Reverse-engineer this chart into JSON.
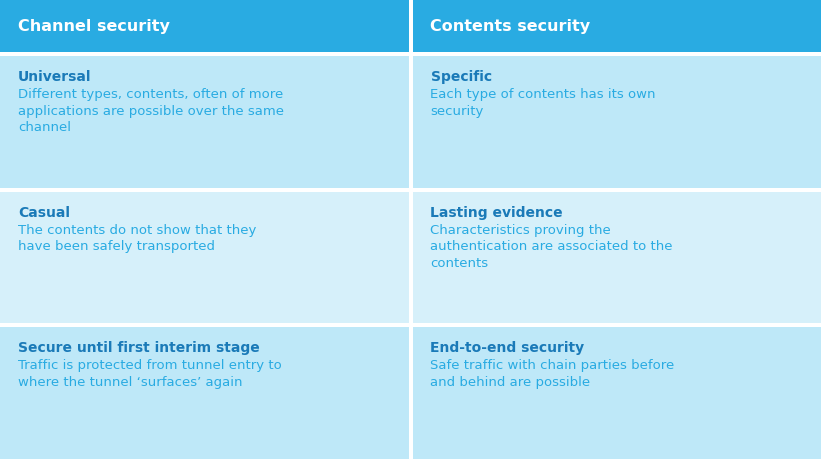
{
  "header_bg": "#29ABE2",
  "header_text_color": "#FFFFFF",
  "row_bgs": [
    "#BEE8F8",
    "#D6F0FA",
    "#BEE8F8"
  ],
  "bold_text_color": "#1A7AB8",
  "normal_text_color": "#29ABE2",
  "divider_color": "#FFFFFF",
  "headers": [
    "Channel security",
    "Contents security"
  ],
  "rows": [
    {
      "left_title": "Universal",
      "left_body": "Different types, contents, often of more\napplications are possible over the same\nchannel",
      "right_title": "Specific",
      "right_body": "Each type of contents has its own\nsecurity"
    },
    {
      "left_title": "Casual",
      "left_body": "The contents do not show that they\nhave been safely transported",
      "right_title": "Lasting evidence",
      "right_body": "Characteristics proving the\nauthentication are associated to the\ncontents"
    },
    {
      "left_title": "Secure until first interim stage",
      "left_body": "Traffic is protected from tunnel entry to\nwhere the tunnel ‘surfaces’ again",
      "right_title": "End-to-end security",
      "right_body": "Safe traffic with chain parties before\nand behind are possible"
    }
  ],
  "header_fontsize": 11.5,
  "title_fontsize": 10,
  "body_fontsize": 9.5,
  "fig_width": 8.21,
  "fig_height": 4.59,
  "dpi": 100
}
